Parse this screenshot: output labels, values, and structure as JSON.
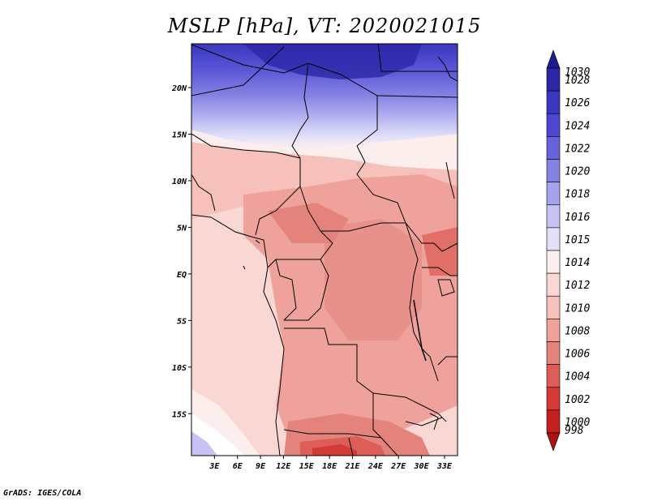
{
  "title": "MSLP [hPa], VT: 2020021015",
  "credit": "GrADS: IGES/COLA",
  "map": {
    "lat_labels": [
      "20N",
      "15N",
      "10N",
      "5N",
      "EQ",
      "5S",
      "10S",
      "15S"
    ],
    "lat_values": [
      20,
      15,
      10,
      5,
      0,
      -5,
      -10,
      -15
    ],
    "lon_labels": [
      "3E",
      "6E",
      "9E",
      "12E",
      "15E",
      "18E",
      "21E",
      "24E",
      "27E",
      "30E",
      "33E"
    ],
    "lon_values": [
      3,
      6,
      9,
      12,
      15,
      18,
      21,
      24,
      27,
      30,
      33
    ],
    "extent": {
      "lon_min": 0,
      "lon_max": 34.7,
      "lat_min": -19.5,
      "lat_max": 24.7
    }
  },
  "colorbar": {
    "labels": [
      "1030",
      "1028",
      "1026",
      "1024",
      "1022",
      "1020",
      "1018",
      "1016",
      "1015",
      "1014",
      "1012",
      "1010",
      "1008",
      "1006",
      "1004",
      "1002",
      "1000",
      "998"
    ],
    "colors": [
      "#1e1b8e",
      "#2c27a6",
      "#3b36bf",
      "#4d48cf",
      "#6663da",
      "#8582e4",
      "#a5a3ec",
      "#c4c3f3",
      "#e2e1f9",
      "#fbeeed",
      "#f9d7d3",
      "#f6c1bb",
      "#eea29b",
      "#e4837c",
      "#dc5e57",
      "#d23b35",
      "#c2211f",
      "#a8130f"
    ]
  },
  "colors": {
    "ocean": "#f9d7d3",
    "boundary": "#000000"
  }
}
